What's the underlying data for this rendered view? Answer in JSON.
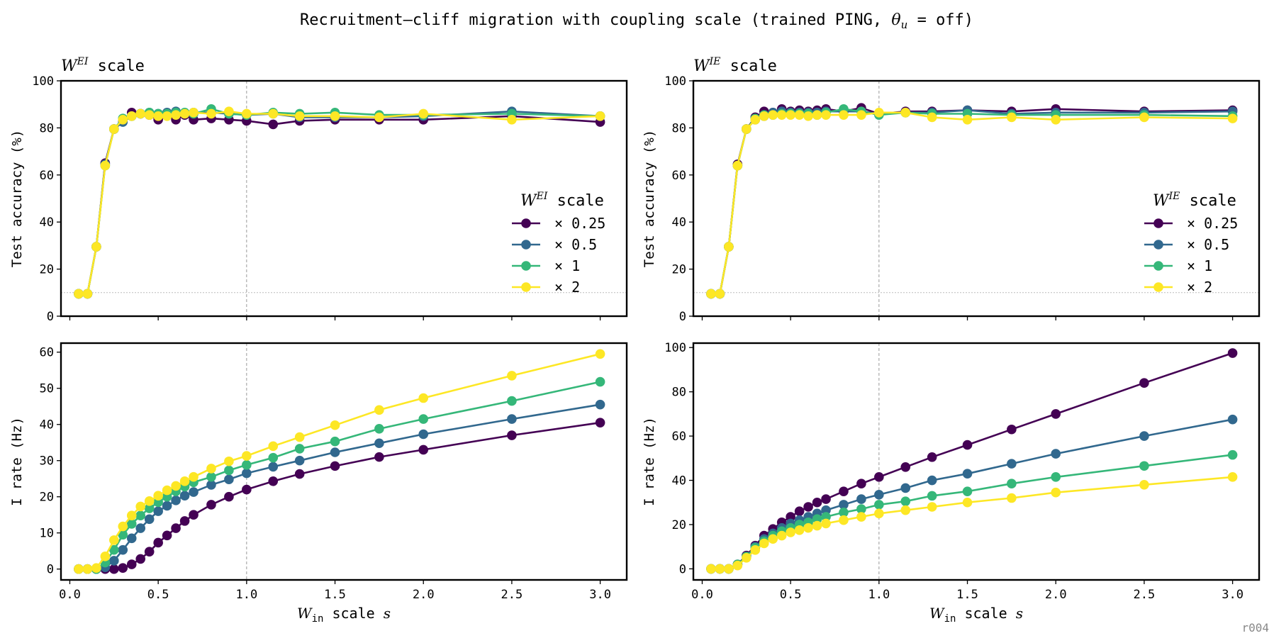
{
  "figure": {
    "suptitle_prefix": "Recruitment–cliff migration with coupling scale (trained PING, ",
    "suptitle_theta": "θ",
    "suptitle_theta_sub": "u",
    "suptitle_suffix": " =  off)",
    "corner_tag": "r004"
  },
  "colors": {
    "x0.25": "#440154",
    "x0.5": "#31688e",
    "x1": "#35b779",
    "x2": "#fde725",
    "ref_line": "#999999"
  },
  "chart_data": [
    {
      "id": "wei_acc",
      "type": "line",
      "title_main": "W",
      "title_sup": "EI",
      "title_rest": " scale",
      "ylabel": "Test accuracy (%)",
      "xlabel": "",
      "xlim": [
        -0.05,
        3.15
      ],
      "ylim": [
        0,
        100
      ],
      "xticks": [
        0.0,
        0.5,
        1.0,
        1.5,
        2.0,
        2.5,
        3.0
      ],
      "yticks": [
        0,
        20,
        40,
        60,
        80,
        100
      ],
      "show_xticklabels": false,
      "vline": 1.0,
      "hline": 10,
      "legend": {
        "title_main": "W",
        "title_sup": "EI",
        "title_rest": " scale",
        "placement": "center-right",
        "entries": [
          "× 0.25",
          "× 0.5",
          "× 1",
          "× 2"
        ]
      },
      "x": [
        0.05,
        0.1,
        0.15,
        0.2,
        0.25,
        0.3,
        0.35,
        0.4,
        0.45,
        0.5,
        0.55,
        0.6,
        0.65,
        0.7,
        0.8,
        0.9,
        1.0,
        1.15,
        1.3,
        1.5,
        1.75,
        2.0,
        2.5,
        3.0
      ],
      "series": [
        {
          "key": "x0.25",
          "values": [
            9.5,
            9.5,
            29.5,
            65,
            79.5,
            83,
            86.5,
            86,
            85.5,
            83.5,
            85.5,
            83.5,
            85.5,
            83.5,
            84,
            83.5,
            83,
            81.5,
            83,
            83.5,
            83.5,
            83.5,
            85,
            82.5
          ]
        },
        {
          "key": "x0.5",
          "values": [
            9.5,
            9.5,
            29.5,
            64.5,
            79.5,
            82.5,
            85,
            86,
            86.5,
            86,
            86.5,
            87,
            86,
            86.5,
            86.5,
            86,
            85.5,
            86,
            84.5,
            84.5,
            84.5,
            85,
            87,
            85
          ]
        },
        {
          "key": "x1",
          "values": [
            9.5,
            9.5,
            29.5,
            64,
            79.5,
            84,
            85,
            86,
            86.5,
            86,
            86,
            86.5,
            86.5,
            86,
            88,
            86,
            85.5,
            86.5,
            86,
            86.5,
            85.5,
            85.5,
            86,
            85
          ]
        },
        {
          "key": "x2",
          "values": [
            9.5,
            9.5,
            29.5,
            64,
            79.5,
            83.5,
            85,
            86,
            85.5,
            85,
            85,
            85.5,
            86,
            86.5,
            86,
            87,
            86,
            86,
            85,
            85,
            84.5,
            86,
            83.5,
            85
          ]
        }
      ]
    },
    {
      "id": "wie_acc",
      "type": "line",
      "title_main": "W",
      "title_sup": "IE",
      "title_rest": " scale",
      "ylabel": "Test accuracy (%)",
      "xlabel": "",
      "xlim": [
        -0.05,
        3.15
      ],
      "ylim": [
        0,
        100
      ],
      "xticks": [
        0.0,
        0.5,
        1.0,
        1.5,
        2.0,
        2.5,
        3.0
      ],
      "yticks": [
        0,
        20,
        40,
        60,
        80,
        100
      ],
      "show_xticklabels": false,
      "vline": 1.0,
      "hline": 10,
      "legend": {
        "title_main": "W",
        "title_sup": "IE",
        "title_rest": " scale",
        "placement": "center-right",
        "entries": [
          "× 0.25",
          "× 0.5",
          "× 1",
          "× 2"
        ]
      },
      "x": [
        0.05,
        0.1,
        0.15,
        0.2,
        0.25,
        0.3,
        0.35,
        0.4,
        0.45,
        0.5,
        0.55,
        0.6,
        0.65,
        0.7,
        0.8,
        0.9,
        1.0,
        1.15,
        1.3,
        1.5,
        1.75,
        2.0,
        2.5,
        3.0
      ],
      "series": [
        {
          "key": "x0.25",
          "values": [
            9.5,
            9.5,
            29.5,
            64.5,
            79.5,
            84.5,
            87,
            86.5,
            88,
            87,
            87.5,
            87,
            87.5,
            88,
            87,
            88.5,
            86,
            87,
            87,
            87.5,
            87,
            88,
            87,
            87.5
          ]
        },
        {
          "key": "x0.5",
          "values": [
            9.5,
            9.5,
            29.5,
            64,
            79.5,
            83.5,
            85,
            86.5,
            87,
            86.5,
            86.5,
            86.5,
            86.5,
            87,
            87,
            87,
            86,
            86.5,
            86.5,
            87.5,
            86,
            86.5,
            86.5,
            87
          ]
        },
        {
          "key": "x1",
          "values": [
            9.5,
            9.5,
            29.5,
            64,
            79.5,
            84,
            85.5,
            85.5,
            86,
            86,
            86,
            86,
            85.5,
            86.5,
            88,
            87,
            85.5,
            86.5,
            86,
            86,
            85.5,
            85.5,
            85.5,
            85
          ]
        },
        {
          "key": "x2",
          "values": [
            9.5,
            9.5,
            29.5,
            64,
            79.5,
            83.5,
            85,
            85.5,
            85.5,
            85.5,
            85.5,
            85,
            85.5,
            85.5,
            85.5,
            85.5,
            86.5,
            86.5,
            84.5,
            83.5,
            84.5,
            83.5,
            84.5,
            84
          ]
        }
      ]
    },
    {
      "id": "wei_rate",
      "type": "line",
      "ylabel": "I rate (Hz)",
      "xlabel_main": "W",
      "xlabel_sub": "in",
      "xlabel_rest": " scale ",
      "xlabel_var": "s",
      "xlim": [
        -0.05,
        3.15
      ],
      "ylim": [
        -3,
        62.5
      ],
      "xticks": [
        0.0,
        0.5,
        1.0,
        1.5,
        2.0,
        2.5,
        3.0
      ],
      "xticklabels": [
        "0.0",
        "0.5",
        "1.0",
        "1.5",
        "2.0",
        "2.5",
        "3.0"
      ],
      "yticks": [
        0,
        10,
        20,
        30,
        40,
        50,
        60
      ],
      "show_xticklabels": true,
      "vline": 1.0,
      "x": [
        0.05,
        0.1,
        0.15,
        0.2,
        0.25,
        0.3,
        0.35,
        0.4,
        0.45,
        0.5,
        0.55,
        0.6,
        0.65,
        0.7,
        0.8,
        0.9,
        1.0,
        1.15,
        1.3,
        1.5,
        1.75,
        2.0,
        2.5,
        3.0
      ],
      "series": [
        {
          "key": "x0.25",
          "values": [
            0,
            0,
            0,
            0,
            0,
            0.3,
            1.3,
            2.8,
            4.8,
            7.3,
            9.3,
            11.3,
            13.3,
            15,
            17.8,
            20,
            22,
            24.3,
            26.3,
            28.5,
            31,
            33,
            37,
            40.5
          ]
        },
        {
          "key": "x0.5",
          "values": [
            0,
            0,
            0,
            0.5,
            2.3,
            5.3,
            8.5,
            11.3,
            13.8,
            16,
            17.5,
            19,
            20.3,
            21.3,
            23.3,
            24.8,
            26.5,
            28.3,
            30,
            32.3,
            34.8,
            37.3,
            41.5,
            45.5
          ]
        },
        {
          "key": "x1",
          "values": [
            0,
            0,
            0,
            1.8,
            5.3,
            9.5,
            12.5,
            14.8,
            16.8,
            18.5,
            20,
            21.5,
            22.8,
            24,
            25.5,
            27.3,
            28.8,
            30.8,
            33.3,
            35.3,
            38.8,
            41.5,
            46.5,
            51.8
          ]
        },
        {
          "key": "x2",
          "values": [
            0,
            0,
            0.3,
            3.5,
            8,
            11.8,
            14.8,
            17.3,
            18.8,
            20.3,
            21.8,
            23,
            24.3,
            25.5,
            27.8,
            29.8,
            31.3,
            34,
            36.5,
            39.8,
            44,
            47.3,
            53.5,
            59.5
          ]
        }
      ]
    },
    {
      "id": "wie_rate",
      "type": "line",
      "ylabel": "I rate (Hz)",
      "xlabel_main": "W",
      "xlabel_sub": "in",
      "xlabel_rest": " scale ",
      "xlabel_var": "s",
      "xlim": [
        -0.05,
        3.15
      ],
      "ylim": [
        -5,
        102
      ],
      "xticks": [
        0.0,
        0.5,
        1.0,
        1.5,
        2.0,
        2.5,
        3.0
      ],
      "xticklabels": [
        "0.0",
        "0.5",
        "1.0",
        "1.5",
        "2.0",
        "2.5",
        "3.0"
      ],
      "yticks": [
        0,
        20,
        40,
        60,
        80,
        100
      ],
      "show_xticklabels": true,
      "vline": 1.0,
      "x": [
        0.05,
        0.1,
        0.15,
        0.2,
        0.25,
        0.3,
        0.35,
        0.4,
        0.45,
        0.5,
        0.55,
        0.6,
        0.65,
        0.7,
        0.8,
        0.9,
        1.0,
        1.15,
        1.3,
        1.5,
        1.75,
        2.0,
        2.5,
        3.0
      ],
      "series": [
        {
          "key": "x0.25",
          "values": [
            0,
            0,
            0,
            2,
            6,
            10.5,
            15,
            18,
            21,
            23.5,
            26,
            28,
            30,
            31.5,
            35,
            38.5,
            41.5,
            46,
            50.5,
            56,
            63,
            70,
            84,
            97.5
          ]
        },
        {
          "key": "x0.5",
          "values": [
            0,
            0,
            0,
            2,
            5.5,
            10,
            13.5,
            16,
            18.5,
            20.5,
            22,
            23.5,
            25,
            26.5,
            29,
            31.5,
            33.5,
            36.5,
            40,
            43,
            47.5,
            52,
            60,
            67.5
          ]
        },
        {
          "key": "x1",
          "values": [
            0,
            0,
            0,
            2,
            5.5,
            9.5,
            12.5,
            15,
            17,
            18.5,
            20,
            21,
            22.5,
            23.5,
            25.5,
            27,
            29,
            30.5,
            33,
            35,
            38.5,
            41.5,
            46.5,
            51.5
          ]
        },
        {
          "key": "x2",
          "values": [
            0,
            0,
            0,
            1.5,
            5,
            8.5,
            11.5,
            13.5,
            15,
            16.5,
            17.5,
            18.5,
            19.5,
            20.5,
            22,
            23.5,
            25,
            26.5,
            28,
            30,
            32,
            34.5,
            38,
            41.5
          ]
        }
      ]
    }
  ]
}
